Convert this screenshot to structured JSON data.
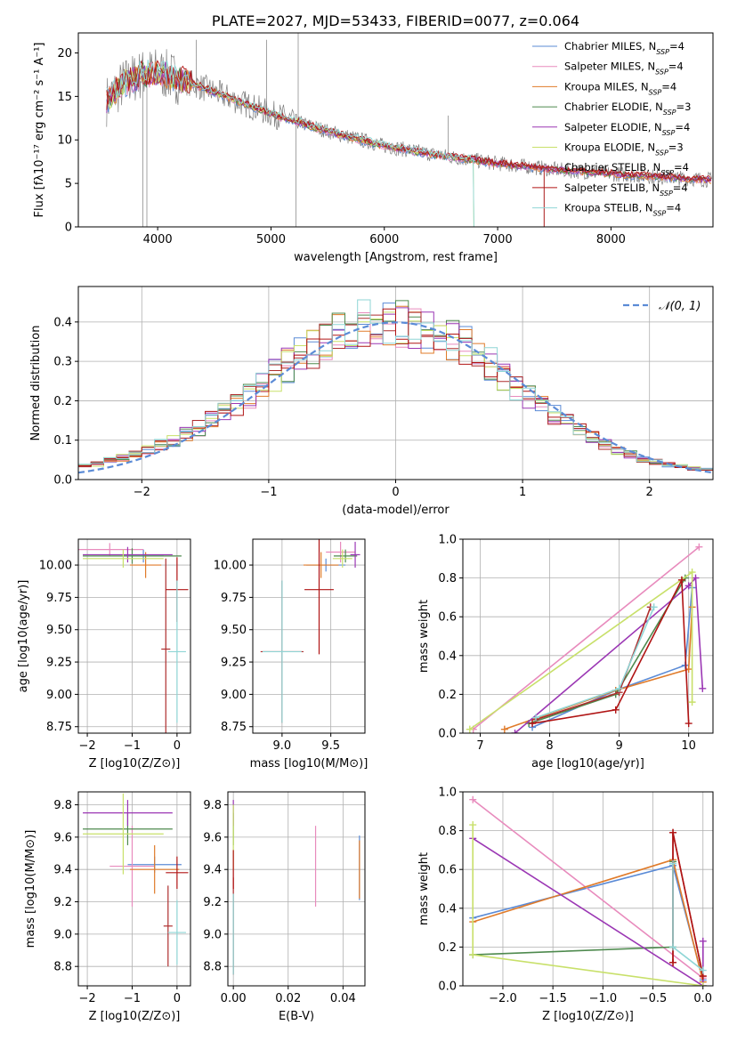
{
  "colors": {
    "data_spectrum": "#7f7f7f",
    "chabrier_miles": "#5b8bd6",
    "salpeter_miles": "#e88bbd",
    "kroupa_miles": "#e07b2a",
    "chabrier_elodie": "#4e8a4e",
    "salpeter_elodie": "#9b37b4",
    "kroupa_elodie": "#c8e06a",
    "chabrier_stelib": "#ae2e2e",
    "salpeter_stelib": "#b01414",
    "kroupa_stelib": "#8fd6d6",
    "normal_curve": "#5b8bd6"
  },
  "chart_data": [
    {
      "id": "spectrum",
      "type": "line",
      "title": "PLATE=2027, MJD=53433, FIBERID=0077, z=0.064",
      "xlabel": "wavelength [Angstrom, rest frame]",
      "ylabel": "Flux [fλ10⁻¹⁷ erg cm⁻² s⁻¹ A⁻¹]",
      "xlim": [
        3300,
        8900
      ],
      "ylim": [
        0,
        22.3
      ],
      "xticks": [
        4000,
        5000,
        6000,
        7000,
        8000
      ],
      "yticks": [
        0,
        5,
        10,
        15,
        20
      ],
      "legend_position": "upper right",
      "legend": [
        {
          "color_key": "chabrier_miles",
          "label": "Chabrier MILES, N",
          "sub": "SSP",
          "suffix": "=4"
        },
        {
          "color_key": "salpeter_miles",
          "label": "Salpeter MILES, N",
          "sub": "SSP",
          "suffix": "=4"
        },
        {
          "color_key": "kroupa_miles",
          "label": "Kroupa MILES, N",
          "sub": "SSP",
          "suffix": "=4"
        },
        {
          "color_key": "chabrier_elodie",
          "label": "Chabrier ELODIE, N",
          "sub": "SSP",
          "suffix": "=3"
        },
        {
          "color_key": "salpeter_elodie",
          "label": "Salpeter ELODIE, N",
          "sub": "SSP",
          "suffix": "=4"
        },
        {
          "color_key": "kroupa_elodie",
          "label": "Kroupa ELODIE, N",
          "sub": "SSP",
          "suffix": "=3"
        },
        {
          "color_key": "chabrier_stelib",
          "label": "Chabrier STELIB, N",
          "sub": "SSP",
          "suffix": "=4"
        },
        {
          "color_key": "salpeter_stelib",
          "label": "Salpeter STELIB, N",
          "sub": "SSP",
          "suffix": "=4"
        },
        {
          "color_key": "kroupa_stelib",
          "label": "Kroupa STELIB, N",
          "sub": "SSP",
          "suffix": "=4"
        }
      ],
      "continuum": {
        "x": [
          3550,
          3700,
          3850,
          4000,
          4300,
          4600,
          5000,
          5500,
          6000,
          6500,
          7000,
          7500,
          8000,
          8500,
          8900
        ],
        "y": [
          14.5,
          16.5,
          17.5,
          17.8,
          16.5,
          15.0,
          13.0,
          11.0,
          9.3,
          8.2,
          7.3,
          6.6,
          6.1,
          5.7,
          5.4
        ]
      },
      "spikes": [
        {
          "x": 3870,
          "y": 0
        },
        {
          "x": 3905,
          "y": 0
        },
        {
          "x": 4340,
          "y": 21.5
        },
        {
          "x": 4960,
          "y": 21.5
        },
        {
          "x": 5220,
          "y": 0
        },
        {
          "x": 5240,
          "y": 22.3
        },
        {
          "x": 6563,
          "y": 12.8
        },
        {
          "x": 7410,
          "y": 0
        }
      ]
    },
    {
      "id": "residuals",
      "type": "step",
      "xlabel": "(data-model)/error",
      "ylabel": "Normed distribution",
      "xlim": [
        -2.5,
        2.5
      ],
      "ylim": [
        0,
        0.49
      ],
      "xticks": [
        -2,
        -1,
        0,
        1,
        2
      ],
      "yticks": [
        0.0,
        0.1,
        0.2,
        0.3,
        0.4
      ],
      "legend_position": "upper right",
      "curve_label": "𝒩(0, 1)",
      "bins": [
        -2.5,
        -2.4,
        -2.3,
        -2.2,
        -2.1,
        -2.0,
        -1.9,
        -1.8,
        -1.7,
        -1.6,
        -1.5,
        -1.4,
        -1.3,
        -1.2,
        -1.1,
        -1.0,
        -0.9,
        -0.8,
        -0.7,
        -0.6,
        -0.5,
        -0.4,
        -0.3,
        -0.2,
        -0.1,
        0.0,
        0.1,
        0.2,
        0.3,
        0.4,
        0.5,
        0.6,
        0.7,
        0.8,
        0.9,
        1.0,
        1.1,
        1.2,
        1.3,
        1.4,
        1.5,
        1.6,
        1.7,
        1.8,
        1.9,
        2.0,
        2.1,
        2.2,
        2.3,
        2.4,
        2.5
      ],
      "base_values": [
        0.035,
        0.04,
        0.048,
        0.055,
        0.065,
        0.075,
        0.088,
        0.1,
        0.115,
        0.13,
        0.15,
        0.17,
        0.19,
        0.215,
        0.24,
        0.265,
        0.29,
        0.31,
        0.33,
        0.35,
        0.37,
        0.385,
        0.395,
        0.4,
        0.405,
        0.4,
        0.39,
        0.38,
        0.37,
        0.355,
        0.335,
        0.315,
        0.29,
        0.265,
        0.24,
        0.215,
        0.19,
        0.165,
        0.145,
        0.125,
        0.105,
        0.09,
        0.075,
        0.063,
        0.052,
        0.045,
        0.038,
        0.033,
        0.028,
        0.025
      ]
    },
    {
      "id": "age_vs_z",
      "type": "scatter",
      "xlabel": "Z [log10(Z/Z⊙)]",
      "ylabel": "age [log10(age/yr)]",
      "xlim": [
        -2.2,
        0.3
      ],
      "ylim": [
        8.7,
        10.2
      ],
      "xticks": [
        -2,
        -1,
        0
      ],
      "yticks": [
        8.75,
        9.0,
        9.25,
        9.5,
        9.75,
        10.0
      ],
      "points": [
        {
          "color_key": "chabrier_miles",
          "x": -0.75,
          "xerr": 0.45,
          "y": 10.07,
          "yerr": 0.05
        },
        {
          "color_key": "salpeter_miles",
          "x": -1.5,
          "xerr": 0.75,
          "y": 10.12,
          "yerr": 0.05
        },
        {
          "color_key": "kroupa_miles",
          "x": -0.7,
          "xerr": 0.35,
          "y": 10.0,
          "yerr": 0.1
        },
        {
          "color_key": "chabrier_elodie",
          "x": -1.0,
          "xerr": 1.1,
          "y": 10.07,
          "yerr": 0.06
        },
        {
          "color_key": "salpeter_elodie",
          "x": -1.1,
          "xerr": 1.0,
          "y": 10.08,
          "yerr": 0.06
        },
        {
          "color_key": "kroupa_elodie",
          "x": -1.2,
          "xerr": 0.9,
          "y": 10.05,
          "yerr": 0.07
        },
        {
          "color_key": "chabrier_stelib",
          "x": -0.25,
          "xerr": 0.1,
          "y": 9.35,
          "yerr": 0.7
        },
        {
          "color_key": "salpeter_stelib",
          "x": 0.0,
          "xerr": 0.25,
          "y": 9.81,
          "yerr": 0.25
        },
        {
          "color_key": "kroupa_stelib",
          "x": 0.0,
          "xerr": 0.2,
          "y": 9.33,
          "yerr": 0.55
        }
      ]
    },
    {
      "id": "age_vs_mass",
      "type": "scatter",
      "xlabel": "mass [log10(M/M⊙)]",
      "ylabel": "",
      "xlim": [
        8.7,
        9.85
      ],
      "ylim": [
        8.7,
        10.2
      ],
      "xticks": [
        9.0,
        9.5
      ],
      "yticks": [
        8.75,
        9.0,
        9.25,
        9.5,
        9.75,
        10.0
      ],
      "points": [
        {
          "color_key": "chabrier_miles",
          "x": 9.45,
          "xerr": 0.2,
          "y": 10.0,
          "yerr": 0.05
        },
        {
          "color_key": "salpeter_miles",
          "x": 9.6,
          "xerr": 0.15,
          "y": 10.1,
          "yerr": 0.08
        },
        {
          "color_key": "kroupa_miles",
          "x": 9.4,
          "xerr": 0.18,
          "y": 10.0,
          "yerr": 0.1
        },
        {
          "color_key": "chabrier_elodie",
          "x": 9.65,
          "xerr": 0.12,
          "y": 10.07,
          "yerr": 0.05
        },
        {
          "color_key": "salpeter_elodie",
          "x": 9.75,
          "xerr": 0.05,
          "y": 10.08,
          "yerr": 0.1
        },
        {
          "color_key": "kroupa_elodie",
          "x": 9.62,
          "xerr": 0.1,
          "y": 10.05,
          "yerr": 0.07
        },
        {
          "color_key": "chabrier_stelib",
          "x": 9.0,
          "xerr": 0.22,
          "y": 9.33,
          "yerr": 0.55
        },
        {
          "color_key": "salpeter_stelib",
          "x": 9.38,
          "xerr": 0.15,
          "y": 9.81,
          "yerr": 0.5
        },
        {
          "color_key": "kroupa_stelib",
          "x": 9.0,
          "xerr": 0.2,
          "y": 9.33,
          "yerr": 0.55
        }
      ]
    },
    {
      "id": "mass_weight_vs_age",
      "type": "line",
      "xlabel": "age [log10(age/yr)]",
      "ylabel": "mass weight",
      "xlim": [
        6.75,
        10.35
      ],
      "ylim": [
        0,
        1.0
      ],
      "xticks": [
        7,
        8,
        9,
        10
      ],
      "yticks": [
        0.0,
        0.2,
        0.4,
        0.6,
        0.8,
        1.0
      ],
      "series": [
        {
          "color_key": "chabrier_miles",
          "x": [
            7.75,
            8.95,
            9.95,
            10.05
          ],
          "y": [
            0.03,
            0.22,
            0.35,
            0.75
          ]
        },
        {
          "color_key": "salpeter_miles",
          "x": [
            6.9,
            10.15
          ],
          "y": [
            0.02,
            0.96
          ]
        },
        {
          "color_key": "kroupa_miles",
          "x": [
            7.35,
            8.95,
            10.0,
            10.05
          ],
          "y": [
            0.02,
            0.22,
            0.33,
            0.65
          ]
        },
        {
          "color_key": "chabrier_elodie",
          "x": [
            7.7,
            8.95,
            9.95
          ],
          "y": [
            0.05,
            0.2,
            0.8
          ]
        },
        {
          "color_key": "salpeter_elodie",
          "x": [
            7.5,
            10.0,
            10.1,
            10.2
          ],
          "y": [
            0.0,
            0.76,
            0.8,
            0.23
          ]
        },
        {
          "color_key": "kroupa_elodie",
          "x": [
            6.85,
            10.05,
            10.05
          ],
          "y": [
            0.02,
            0.83,
            0.16
          ]
        },
        {
          "color_key": "chabrier_stelib",
          "x": [
            7.8,
            9.0,
            9.45
          ],
          "y": [
            0.07,
            0.21,
            0.65
          ]
        },
        {
          "color_key": "salpeter_stelib",
          "x": [
            7.75,
            8.95,
            9.9,
            10.0
          ],
          "y": [
            0.05,
            0.12,
            0.79,
            0.05
          ]
        },
        {
          "color_key": "kroupa_stelib",
          "x": [
            7.8,
            9.0,
            9.5
          ],
          "y": [
            0.08,
            0.23,
            0.65
          ]
        }
      ]
    },
    {
      "id": "mass_vs_z",
      "type": "scatter",
      "xlabel": "Z [log10(Z/Z⊙)]",
      "ylabel": "mass [log10(M/M⊙)]",
      "xlim": [
        -2.2,
        0.3
      ],
      "ylim": [
        8.68,
        9.88
      ],
      "xticks": [
        -2,
        -1,
        0
      ],
      "yticks": [
        8.8,
        9.0,
        9.2,
        9.4,
        9.6,
        9.8
      ],
      "points": [
        {
          "color_key": "chabrier_miles",
          "x": -0.5,
          "xerr": 0.6,
          "y": 9.43,
          "yerr": 0.05
        },
        {
          "color_key": "salpeter_miles",
          "x": -1.0,
          "xerr": 0.5,
          "y": 9.42,
          "yerr": 0.25
        },
        {
          "color_key": "kroupa_miles",
          "x": -0.5,
          "xerr": 0.55,
          "y": 9.4,
          "yerr": 0.15
        },
        {
          "color_key": "chabrier_elodie",
          "x": -1.1,
          "xerr": 1.0,
          "y": 9.65,
          "yerr": 0.1
        },
        {
          "color_key": "salpeter_elodie",
          "x": -1.1,
          "xerr": 1.0,
          "y": 9.75,
          "yerr": 0.08
        },
        {
          "color_key": "kroupa_elodie",
          "x": -1.2,
          "xerr": 0.9,
          "y": 9.62,
          "yerr": 0.25
        },
        {
          "color_key": "chabrier_stelib",
          "x": -0.2,
          "xerr": 0.1,
          "y": 9.05,
          "yerr": 0.25
        },
        {
          "color_key": "salpeter_stelib",
          "x": 0.0,
          "xerr": 0.25,
          "y": 9.38,
          "yerr": 0.1
        },
        {
          "color_key": "kroupa_stelib",
          "x": 0.0,
          "xerr": 0.2,
          "y": 9.01,
          "yerr": 0.2
        }
      ]
    },
    {
      "id": "mass_vs_ebv",
      "type": "scatter",
      "xlabel": "E(B-V)",
      "ylabel": "",
      "xlim": [
        -0.002,
        0.048
      ],
      "ylim": [
        8.68,
        9.88
      ],
      "xticks": [
        0.0,
        0.02,
        0.04
      ],
      "yticks": [
        8.8,
        9.0,
        9.2,
        9.4,
        9.6,
        9.8
      ],
      "points": [
        {
          "color_key": "chabrier_miles",
          "x": 0.046,
          "xerr": 0,
          "y": 9.41,
          "yerr": 0.2
        },
        {
          "color_key": "salpeter_miles",
          "x": 0.03,
          "xerr": 0,
          "y": 9.42,
          "yerr": 0.25
        },
        {
          "color_key": "kroupa_miles",
          "x": 0.046,
          "xerr": 0,
          "y": 9.4,
          "yerr": 0.18
        },
        {
          "color_key": "chabrier_elodie",
          "x": 0.0,
          "xerr": 0,
          "y": 9.65,
          "yerr": 0.1
        },
        {
          "color_key": "salpeter_elodie",
          "x": 0.0,
          "xerr": 0,
          "y": 9.75,
          "yerr": 0.08
        },
        {
          "color_key": "kroupa_elodie",
          "x": 0.0,
          "xerr": 0,
          "y": 9.6,
          "yerr": 0.2
        },
        {
          "color_key": "chabrier_stelib",
          "x": 0.0,
          "xerr": 0,
          "y": 9.05,
          "yerr": 0.3
        },
        {
          "color_key": "salpeter_stelib",
          "x": 0.0,
          "xerr": 0,
          "y": 9.4,
          "yerr": 0.12
        },
        {
          "color_key": "kroupa_stelib",
          "x": 0.0,
          "xerr": 0,
          "y": 9.0,
          "yerr": 0.25
        }
      ]
    },
    {
      "id": "mass_weight_vs_z",
      "type": "line",
      "xlabel": "Z [log10(Z/Z⊙)]",
      "ylabel": "mass weight",
      "xlim": [
        -2.4,
        0.1
      ],
      "ylim": [
        0,
        1.0
      ],
      "xticks": [
        -2.0,
        -1.5,
        -1.0,
        -0.5,
        0.0
      ],
      "yticks": [
        0.0,
        0.2,
        0.4,
        0.6,
        0.8,
        1.0
      ],
      "series": [
        {
          "color_key": "chabrier_miles",
          "x": [
            -2.3,
            -0.3,
            0.0
          ],
          "y": [
            0.35,
            0.62,
            0.03
          ]
        },
        {
          "color_key": "salpeter_miles",
          "x": [
            -2.3,
            0.0
          ],
          "y": [
            0.96,
            0.04
          ]
        },
        {
          "color_key": "kroupa_miles",
          "x": [
            -2.3,
            -0.3,
            0.0
          ],
          "y": [
            0.33,
            0.65,
            0.02
          ]
        },
        {
          "color_key": "chabrier_elodie",
          "x": [
            -2.3,
            -0.3,
            -0.3
          ],
          "y": [
            0.16,
            0.2,
            0.64
          ]
        },
        {
          "color_key": "salpeter_elodie",
          "x": [
            -2.3,
            0.0,
            0.0
          ],
          "y": [
            0.76,
            0.0,
            0.23
          ]
        },
        {
          "color_key": "kroupa_elodie",
          "x": [
            -2.3,
            -2.3,
            0.0
          ],
          "y": [
            0.83,
            0.16,
            0.0
          ]
        },
        {
          "color_key": "chabrier_stelib",
          "x": [
            -0.3,
            -0.3,
            0.0
          ],
          "y": [
            0.12,
            0.79,
            0.05
          ]
        },
        {
          "color_key": "salpeter_stelib",
          "x": [
            -0.3,
            -0.3,
            0.0
          ],
          "y": [
            0.12,
            0.79,
            0.05
          ]
        },
        {
          "color_key": "kroupa_stelib",
          "x": [
            -0.3,
            -0.3,
            0.0
          ],
          "y": [
            0.63,
            0.2,
            0.08
          ]
        }
      ]
    }
  ]
}
